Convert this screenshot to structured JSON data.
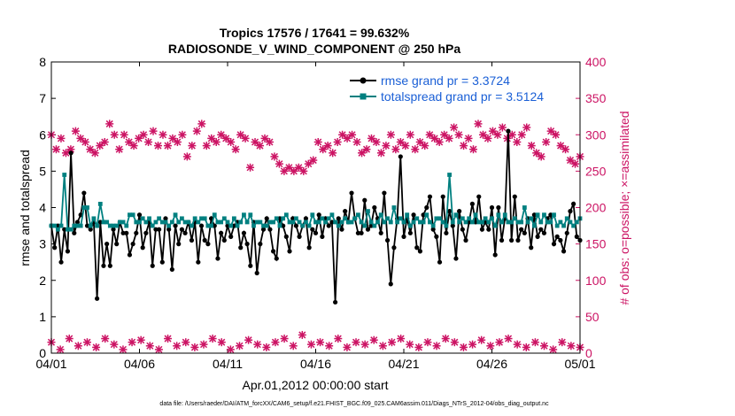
{
  "chart_data": {
    "type": "line",
    "title_line1": "Tropics 17576 / 17641 = 99.632%",
    "title_line2": "RADIOSONDE_V_WIND_COMPONENT @ 250 hPa",
    "xlabel": "Apr.01,2012 00:00:00 start",
    "ylabel_left": "rmse and totalspread",
    "ylabel_right": "# of obs: o=possible; ×=assimilated",
    "footer": "data file: /Users/raeder/DAI/ATM_forcXX/CAM6_setup/f.e21.FHIST_BGC.f09_025.CAM6assim.011/Diags_NTrS_2012-04/obs_diag_output.nc",
    "xlim": [
      0,
      30
    ],
    "ylim_left": [
      0,
      8
    ],
    "ylim_right": [
      0,
      400
    ],
    "x_tick_labels": [
      "04/01",
      "04/06",
      "04/11",
      "04/16",
      "04/21",
      "04/26",
      "05/01"
    ],
    "x_tick_values": [
      0,
      5,
      10,
      15,
      20,
      25,
      30
    ],
    "y_left_ticks": [
      0,
      1,
      2,
      3,
      4,
      5,
      6,
      7,
      8
    ],
    "y_right_ticks": [
      0,
      50,
      100,
      150,
      200,
      250,
      300,
      350,
      400
    ],
    "colors": {
      "rmse": "#000000",
      "spread": "#008080",
      "obs": "#cc1464",
      "legend_text": "#1a5fd6",
      "right_axis": "#cc1464"
    },
    "series": [
      {
        "name": "rmse grand pr = 3.3724",
        "values": [
          3.5,
          2.9,
          3.5,
          2.5,
          3.4,
          2.8,
          5.5,
          3.3,
          3.6,
          3.8,
          4.4,
          3.5,
          3.4,
          3.6,
          1.5,
          3.6,
          2.4,
          3.0,
          2.4,
          3.4,
          3.0,
          3.6,
          3.3,
          3.3,
          2.7,
          3.0,
          3.3,
          3.8,
          2.9,
          3.3,
          3.6,
          2.4,
          3.4,
          3.4,
          2.5,
          3.7,
          3.4,
          2.3,
          3.5,
          3.0,
          3.4,
          3.3,
          3.6,
          3.1,
          3.6,
          2.5,
          3.5,
          3.1,
          3.0,
          3.7,
          3.5,
          2.6,
          3.3,
          3.1,
          3.5,
          3.2,
          3.5,
          3.6,
          2.9,
          3.3,
          3.0,
          2.4,
          3.6,
          2.2,
          3.0,
          3.4,
          3.7,
          3.4,
          2.8,
          2.6,
          3.7,
          3.5,
          3.2,
          2.8,
          3.7,
          3.5,
          3.2,
          3.5,
          3.7,
          2.9,
          3.4,
          3.3,
          3.8,
          3.2,
          3.7,
          3.5,
          3.6,
          1.4,
          3.7,
          3.4,
          3.9,
          3.6,
          4.4,
          3.7,
          3.3,
          3.3,
          4.2,
          3.4,
          3.5,
          4.0,
          3.7,
          3.3,
          4.4,
          3.1,
          1.9,
          2.9,
          3.7,
          5.4,
          3.2,
          3.7,
          3.3,
          3.8,
          2.9,
          2.8,
          3.8,
          4.0,
          4.3,
          3.4,
          3.2,
          2.5,
          4.3,
          3.3,
          3.9,
          3.5,
          2.6,
          3.9,
          3.4,
          3.1,
          3.6,
          4.1,
          3.6,
          4.3,
          3.4,
          3.6,
          3.4,
          4.0,
          2.7,
          4.0,
          3.1,
          3.7,
          6.1,
          3.1,
          4.3,
          3.1,
          3.4,
          3.3,
          3.7,
          2.9,
          3.8,
          3.2,
          3.4,
          3.3,
          3.7,
          3.8,
          3.0,
          3.2,
          3.1,
          2.8,
          3.3,
          3.9,
          4.1,
          3.2,
          3.1
        ],
        "marker": "dot"
      },
      {
        "name": "totalspread grand pr = 3.5124",
        "values": [
          3.5,
          3.5,
          3.4,
          3.5,
          4.9,
          3.4,
          3.4,
          3.5,
          3.5,
          3.5,
          4.0,
          4.0,
          3.5,
          3.7,
          3.5,
          4.1,
          3.6,
          3.6,
          3.5,
          3.5,
          3.5,
          3.6,
          3.6,
          3.5,
          3.8,
          3.8,
          3.6,
          3.6,
          3.7,
          3.6,
          3.7,
          3.5,
          3.6,
          3.7,
          3.6,
          3.6,
          3.5,
          3.6,
          3.8,
          3.6,
          3.7,
          3.6,
          3.6,
          3.5,
          3.7,
          3.6,
          3.7,
          3.7,
          3.5,
          3.5,
          3.8,
          3.6,
          3.6,
          3.7,
          3.6,
          3.5,
          3.7,
          3.5,
          3.6,
          3.8,
          3.6,
          3.8,
          3.5,
          3.6,
          3.6,
          3.5,
          3.5,
          3.6,
          3.6,
          3.7,
          3.5,
          3.7,
          3.8,
          3.6,
          3.6,
          3.7,
          3.6,
          3.5,
          3.6,
          3.5,
          3.8,
          3.6,
          3.6,
          3.7,
          3.6,
          3.7,
          3.8,
          3.6,
          3.5,
          3.6,
          3.7,
          3.6,
          3.6,
          3.7,
          3.8,
          3.6,
          3.5,
          3.9,
          3.6,
          3.5,
          3.6,
          3.8,
          3.6,
          3.7,
          3.6,
          4.0,
          3.6,
          3.7,
          3.6,
          3.8,
          3.5,
          3.6,
          3.7,
          3.6,
          3.6,
          3.8,
          3.6,
          3.5,
          3.7,
          3.7,
          3.6,
          3.5,
          4.9,
          3.6,
          3.8,
          3.6,
          3.7,
          3.6,
          3.7,
          3.6,
          3.8,
          3.6,
          3.6,
          3.7,
          3.6,
          3.7,
          3.5,
          3.8,
          3.6,
          3.8,
          3.6,
          3.6,
          3.7,
          3.6,
          3.6,
          4.0,
          3.6,
          3.7,
          3.5,
          3.8,
          3.6,
          3.8,
          3.6,
          3.6,
          3.8,
          3.5,
          3.6,
          3.5,
          3.7,
          3.6,
          3.5,
          3.6,
          3.7
        ],
        "marker": "square"
      }
    ],
    "obs_possible": [
      300,
      280,
      295,
      275,
      280,
      305,
      295,
      290,
      280,
      275,
      285,
      290,
      315,
      300,
      280,
      300,
      290,
      285,
      295,
      300,
      290,
      305,
      285,
      300,
      285,
      295,
      290,
      300,
      270,
      285,
      305,
      315,
      285,
      295,
      290,
      300,
      295,
      290,
      280,
      300,
      295,
      255,
      290,
      285,
      295,
      290,
      270,
      260,
      250,
      255,
      250,
      255,
      250,
      260,
      265,
      290,
      280,
      285,
      275,
      290,
      300,
      295,
      300,
      290,
      275,
      280,
      295,
      290,
      275,
      285,
      300,
      280,
      290,
      285,
      300,
      280,
      290,
      285,
      300,
      295,
      290,
      300,
      295,
      310,
      300,
      285,
      295,
      280,
      315,
      300,
      295,
      305,
      300,
      310,
      295,
      300,
      290,
      300,
      310,
      285,
      275,
      270,
      290,
      305,
      300,
      285,
      280,
      265,
      260,
      270
    ],
    "obs_assimilated": [
      300,
      280,
      295,
      275,
      280,
      305,
      295,
      290,
      280,
      275,
      285,
      290,
      315,
      300,
      280,
      300,
      290,
      285,
      295,
      300,
      290,
      305,
      285,
      300,
      285,
      295,
      290,
      300,
      270,
      285,
      305,
      315,
      285,
      295,
      290,
      300,
      295,
      290,
      280,
      300,
      295,
      255,
      290,
      285,
      295,
      290,
      270,
      260,
      250,
      255,
      250,
      255,
      250,
      260,
      265,
      290,
      280,
      285,
      275,
      290,
      300,
      295,
      300,
      290,
      275,
      280,
      295,
      290,
      275,
      285,
      300,
      280,
      290,
      285,
      300,
      280,
      290,
      285,
      300,
      295,
      290,
      300,
      295,
      310,
      300,
      285,
      295,
      280,
      315,
      300,
      295,
      305,
      300,
      310,
      295,
      300,
      290,
      300,
      310,
      285,
      275,
      270,
      290,
      305,
      300,
      285,
      280,
      265,
      260,
      270
    ],
    "obs_low_possible": [
      15,
      5,
      20,
      10,
      15,
      8,
      20,
      12,
      5,
      15,
      18,
      10,
      5,
      20,
      10,
      15,
      8,
      12,
      20,
      15,
      5,
      10,
      18,
      12,
      8,
      15,
      20,
      10,
      25,
      12,
      15,
      10,
      20,
      8,
      15,
      12,
      18,
      10,
      15,
      20,
      12,
      8,
      15,
      10,
      20,
      15,
      8,
      12,
      18,
      10,
      15,
      20,
      12,
      8,
      15,
      10,
      5,
      15,
      10,
      8
    ],
    "obs_low_assimilated": [
      15,
      5,
      20,
      10,
      15,
      8,
      20,
      12,
      5,
      15,
      18,
      10,
      5,
      20,
      10,
      15,
      8,
      12,
      20,
      15,
      5,
      10,
      18,
      12,
      8,
      15,
      20,
      10,
      25,
      12,
      15,
      10,
      20,
      8,
      15,
      12,
      18,
      10,
      15,
      20,
      12,
      8,
      15,
      10,
      20,
      15,
      8,
      12,
      18,
      10,
      15,
      20,
      12,
      8,
      15,
      10,
      5,
      15,
      10,
      8
    ]
  }
}
